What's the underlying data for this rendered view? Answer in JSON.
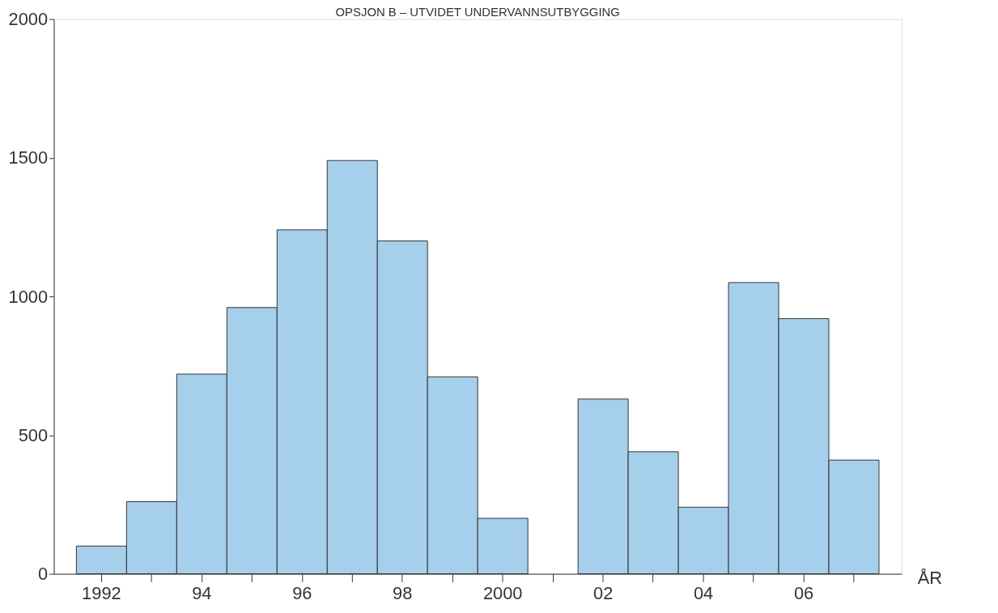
{
  "chart_data": {
    "type": "bar",
    "title": "OPSJON B – UTVIDET UNDERVANNSUTBYGGING",
    "xlabel": "ÅR",
    "categories": [
      "1992",
      null,
      "94",
      null,
      "96",
      null,
      "98",
      null,
      "2000",
      null,
      "02",
      null,
      "04",
      null,
      "06",
      null
    ],
    "values": [
      100,
      260,
      720,
      960,
      1240,
      1490,
      1200,
      710,
      200,
      null,
      630,
      440,
      240,
      1050,
      920,
      410
    ],
    "color": "#a6cfec",
    "ylim": [
      0,
      2000
    ],
    "yticks": [
      0,
      500,
      1000,
      1500,
      2000
    ],
    "grid": false
  }
}
